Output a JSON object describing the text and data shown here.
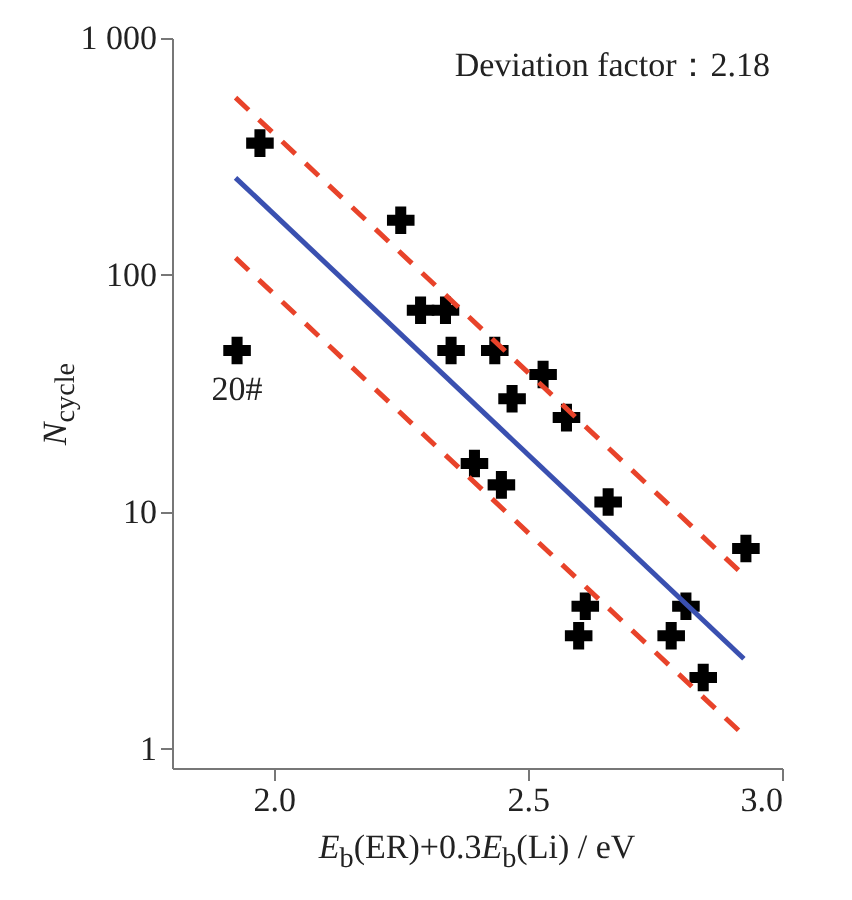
{
  "chart_data": {
    "type": "scatter",
    "xlabel": "E$_{b}$(ER)+0.3E$_{b}$(Li) / eV",
    "ylabel": "N$_{cycle}$",
    "log": "y",
    "xlim": [
      1.8,
      3.0
    ],
    "ylim": [
      0.83,
      1000
    ],
    "xticks": [
      {
        "value": 2.0,
        "label": "2.0"
      },
      {
        "value": 2.5,
        "label": "2.5"
      },
      {
        "value": 3.0,
        "label": "3.0"
      }
    ],
    "yticks": [
      1,
      10,
      100,
      {
        "value": 1000,
        "label": "1 000"
      }
    ],
    "grid": false,
    "annotations": [
      "Deviation factor：2.18",
      {
        "text": "20#",
        "x": 1.928,
        "y": 48
      }
    ],
    "series": [
      {
        "marker": "cross",
        "color": "#000000",
        "x": [
          1.928,
          1.973,
          2.25,
          2.289,
          2.338,
          2.349,
          2.435,
          2.53,
          2.469,
          2.576,
          2.395,
          2.448,
          2.658,
          2.929,
          2.613,
          2.6,
          2.782,
          2.811,
          2.845
        ],
        "values": [
          48,
          360,
          170,
          71,
          71,
          48,
          48,
          38,
          30,
          25,
          16,
          13,
          11,
          7,
          4,
          3,
          3,
          4,
          2
        ]
      },
      {
        "type": "line",
        "color": "#3a50b0",
        "line_style": "solid",
        "x": [
          1.925,
          2.925
        ],
        "values": [
          257,
          2.4
        ]
      },
      {
        "type": "line",
        "color": "#e8432a",
        "line_style": "dashed",
        "x": [
          1.925,
          2.925
        ],
        "values": [
          560,
          5.4
        ]
      },
      {
        "type": "line",
        "color": "#e8432a",
        "line_style": "dashed",
        "x": [
          1.925,
          2.925
        ],
        "values": [
          118,
          1.14
        ]
      }
    ]
  }
}
